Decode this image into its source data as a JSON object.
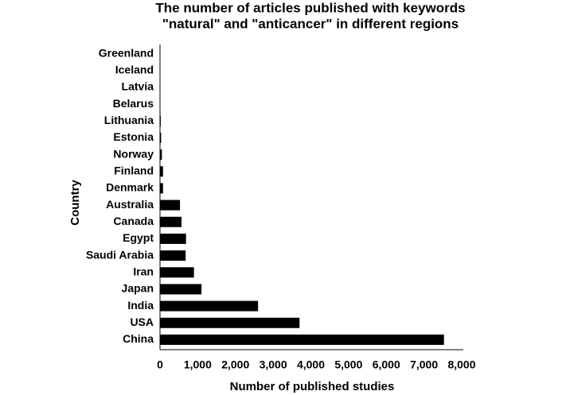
{
  "chart_data": {
    "type": "barh",
    "title": "The number of articles published with keywords",
    "subtitle": "\"natural\" and \"anticancer\" in different regions",
    "x_label": "Number of published studies",
    "y_label": "Country",
    "categories": [
      "Greenland",
      "Iceland",
      "Latvia",
      "Belarus",
      "Lithuania",
      "Estonia",
      "Norway",
      "Finland",
      "Denmark",
      "Australia",
      "Canada",
      "Egypt",
      "Saudi Arabia",
      "Iran",
      "Japan",
      "India",
      "USA",
      "China"
    ],
    "values": [
      1,
      3,
      5,
      10,
      20,
      30,
      50,
      80,
      80,
      530,
      570,
      690,
      680,
      900,
      1100,
      2600,
      3700,
      7530
    ],
    "color": "#000000",
    "xlim": [
      0,
      8000
    ],
    "xticks": [
      0,
      {
        "value": 1000,
        "label": "1,000"
      },
      {
        "value": 2000,
        "label": "2,000"
      },
      {
        "value": 3000,
        "label": "3,000"
      },
      {
        "value": 4000,
        "label": "4,000"
      },
      {
        "value": 5000,
        "label": "5,000"
      },
      {
        "value": 6000,
        "label": "6,000"
      },
      {
        "value": 7000,
        "label": "7,000"
      },
      {
        "value": 8000,
        "label": "8,000"
      }
    ],
    "grid": false
  }
}
